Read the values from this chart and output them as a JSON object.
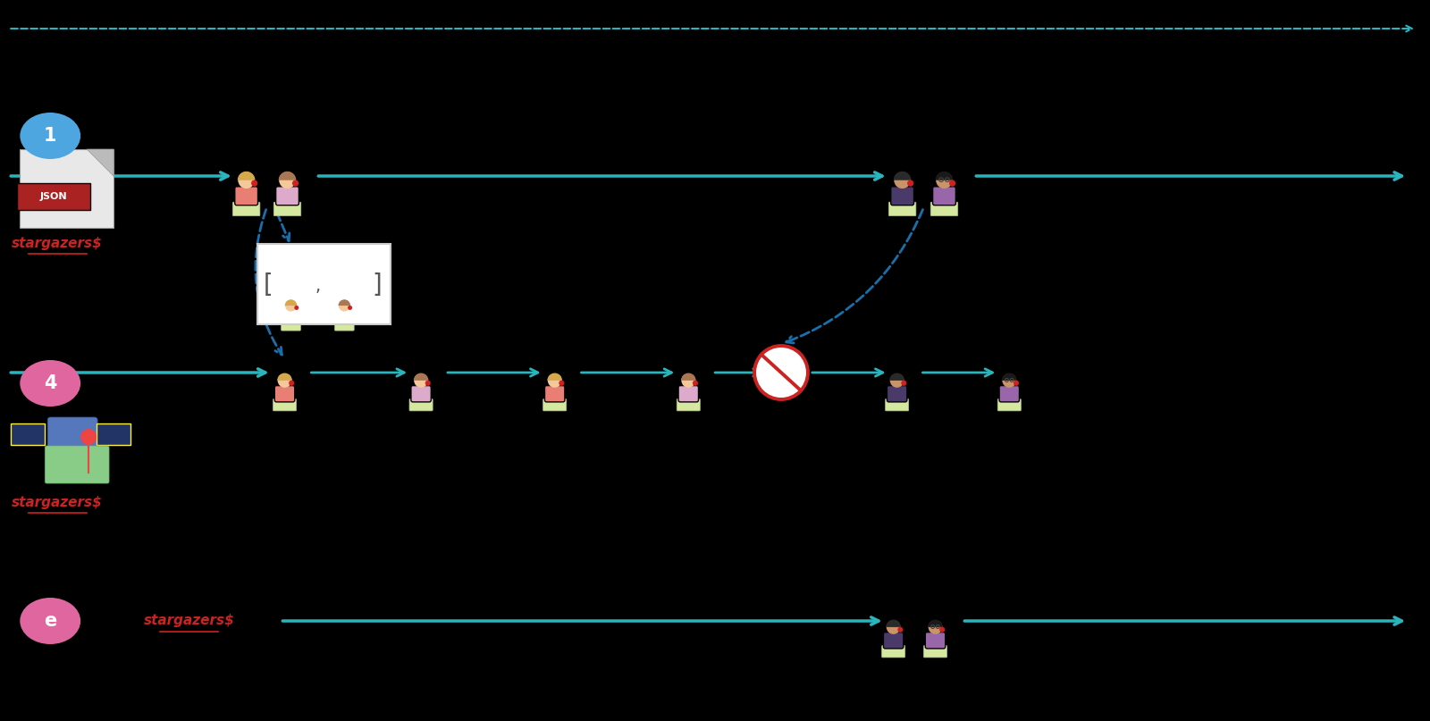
{
  "bg_color": "#000000",
  "teal": "#2ab5be",
  "dashed_blue": "#1a6faa",
  "red_label": "#cc2222",
  "pink_circle": "#e066a0",
  "blue_circle": "#4da6e0",
  "figsize": [
    16.0,
    8.07
  ],
  "dpi": 100,
  "xlim": [
    0,
    16
  ],
  "ylim": [
    0,
    8.07
  ]
}
